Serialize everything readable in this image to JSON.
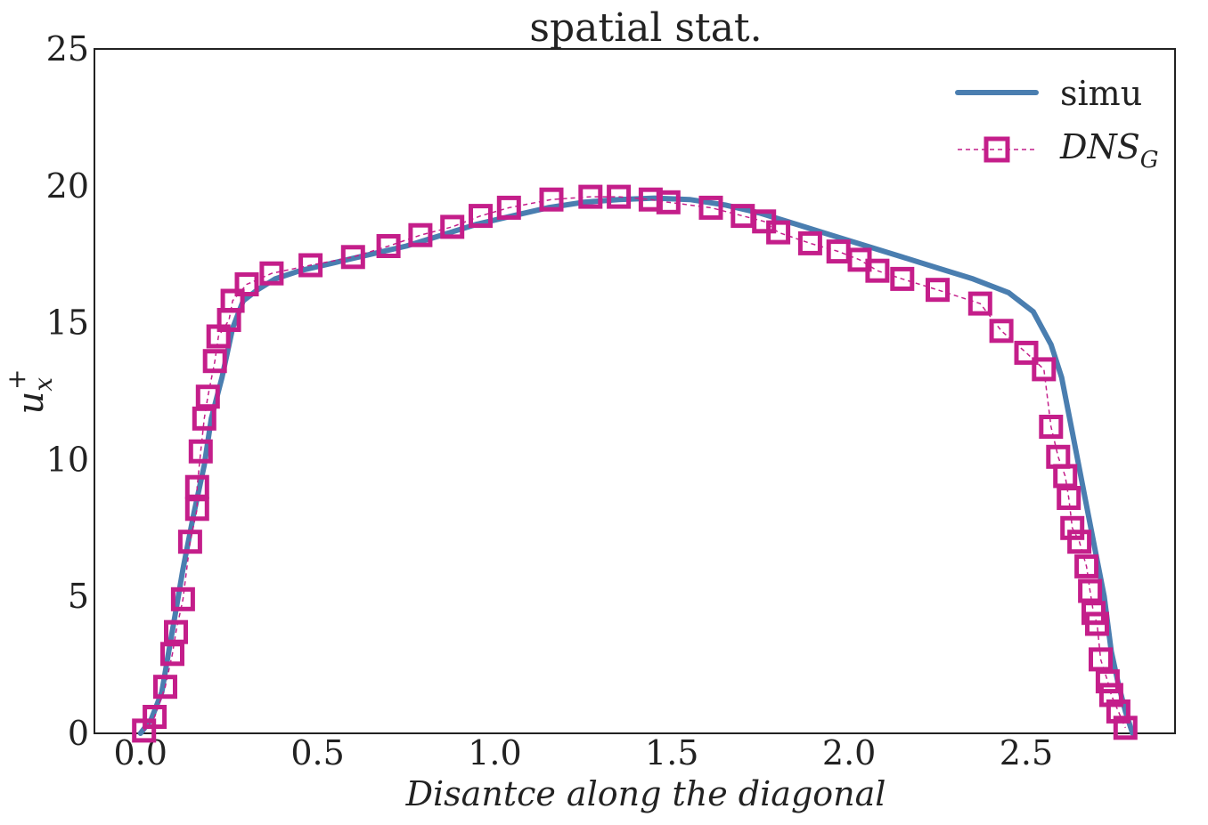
{
  "chart_data": {
    "type": "line",
    "title": "spatial stat.",
    "xlabel": "Disantce along the diagonal",
    "ylabel_base": "u",
    "ylabel_sub": "x",
    "ylabel_sup": "+",
    "xlim": [
      -0.13,
      2.92
    ],
    "ylim": [
      0,
      25
    ],
    "xticks": [
      0.0,
      0.5,
      1.0,
      1.5,
      2.0,
      2.5
    ],
    "xtick_labels": [
      "0.0",
      "0.5",
      "1.0",
      "1.5",
      "2.0",
      "2.5"
    ],
    "yticks": [
      0,
      5,
      10,
      15,
      20,
      25
    ],
    "ytick_labels": [
      "0",
      "5",
      "10",
      "15",
      "20",
      "25"
    ],
    "grid": false,
    "legend_position": "top-right",
    "colors": {
      "simu": "#4a7eb0",
      "dns": "#c41e8a",
      "axes": "#222222"
    },
    "series": [
      {
        "name": "simu",
        "style": "solid-line",
        "x": [
          0.0,
          0.03,
          0.06,
          0.08,
          0.1,
          0.12,
          0.15,
          0.18,
          0.2,
          0.23,
          0.26,
          0.29,
          0.33,
          0.38,
          0.45,
          0.55,
          0.65,
          0.75,
          0.85,
          0.95,
          1.05,
          1.15,
          1.25,
          1.35,
          1.45,
          1.55,
          1.65,
          1.75,
          1.85,
          1.95,
          2.05,
          2.15,
          2.25,
          2.35,
          2.45,
          2.52,
          2.57,
          2.6,
          2.63,
          2.66,
          2.69,
          2.72,
          2.74,
          2.76,
          2.78,
          2.8
        ],
        "y": [
          0.0,
          0.5,
          1.5,
          3.0,
          4.5,
          6.0,
          8.0,
          9.8,
          11.5,
          13.0,
          14.8,
          15.8,
          16.2,
          16.6,
          16.9,
          17.2,
          17.5,
          17.8,
          18.2,
          18.6,
          18.9,
          19.2,
          19.4,
          19.5,
          19.55,
          19.5,
          19.3,
          19.0,
          18.6,
          18.2,
          17.8,
          17.4,
          17.0,
          16.6,
          16.1,
          15.4,
          14.2,
          13.0,
          11.0,
          9.0,
          7.0,
          5.0,
          3.0,
          1.8,
          0.8,
          0.0
        ]
      },
      {
        "name": "DNS_G",
        "style": "dashed-line-square-markers",
        "x": [
          0.01,
          0.04,
          0.07,
          0.09,
          0.1,
          0.12,
          0.14,
          0.16,
          0.16,
          0.17,
          0.18,
          0.19,
          0.21,
          0.22,
          0.25,
          0.26,
          0.3,
          0.37,
          0.48,
          0.6,
          0.7,
          0.79,
          0.88,
          0.96,
          1.04,
          1.16,
          1.27,
          1.35,
          1.44,
          1.49,
          1.61,
          1.7,
          1.76,
          1.8,
          1.89,
          1.97,
          2.03,
          2.08,
          2.15,
          2.25,
          2.37,
          2.43,
          2.5,
          2.55,
          2.57,
          2.59,
          2.61,
          2.62,
          2.63,
          2.65,
          2.67,
          2.68,
          2.69,
          2.7,
          2.71,
          2.73,
          2.74,
          2.76,
          2.78
        ],
        "y": [
          0.1,
          0.6,
          1.7,
          2.9,
          3.7,
          4.9,
          7.0,
          8.2,
          9.0,
          10.3,
          11.5,
          12.3,
          13.6,
          14.5,
          15.1,
          15.8,
          16.4,
          16.8,
          17.1,
          17.4,
          17.8,
          18.2,
          18.5,
          18.9,
          19.2,
          19.5,
          19.6,
          19.6,
          19.5,
          19.4,
          19.2,
          18.9,
          18.7,
          18.3,
          17.9,
          17.6,
          17.3,
          16.9,
          16.6,
          16.2,
          15.7,
          14.7,
          13.9,
          13.3,
          11.2,
          10.1,
          9.4,
          8.6,
          7.5,
          7.0,
          6.1,
          5.2,
          4.4,
          4.0,
          2.7,
          1.9,
          1.4,
          0.8,
          0.2
        ]
      }
    ],
    "legend_entries": [
      {
        "label": "simu",
        "italic": false
      },
      {
        "label_base": "DNS",
        "label_sub": "G",
        "italic": true
      }
    ]
  }
}
